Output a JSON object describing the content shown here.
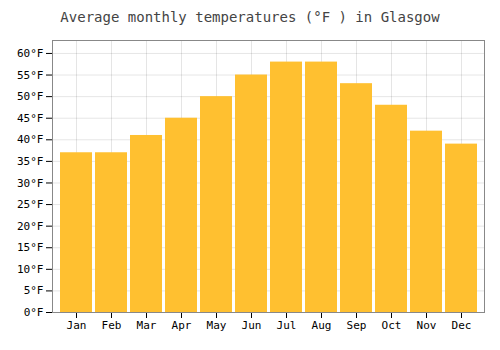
{
  "chart_data": {
    "type": "bar",
    "title": "Average monthly temperatures (°F ) in Glasgow",
    "categories": [
      "Jan",
      "Feb",
      "Mar",
      "Apr",
      "May",
      "Jun",
      "Jul",
      "Aug",
      "Sep",
      "Oct",
      "Nov",
      "Dec"
    ],
    "values": [
      37,
      37,
      41,
      45,
      50,
      55,
      58,
      58,
      53,
      48,
      42,
      39
    ],
    "color": "#FFC030",
    "ylim": [
      0,
      63
    ],
    "yticks": [
      {
        "value": 0,
        "label": "0°F"
      },
      {
        "value": 5,
        "label": "5°F"
      },
      {
        "value": 10,
        "label": "10°F"
      },
      {
        "value": 15,
        "label": "15°F"
      },
      {
        "value": 20,
        "label": "20°F"
      },
      {
        "value": 25,
        "label": "25°F"
      },
      {
        "value": 30,
        "label": "30°F"
      },
      {
        "value": 35,
        "label": "35°F"
      },
      {
        "value": 40,
        "label": "40°F"
      },
      {
        "value": 45,
        "label": "45°F"
      },
      {
        "value": 50,
        "label": "50°F"
      },
      {
        "value": 55,
        "label": "55°F"
      },
      {
        "value": 60,
        "label": "60°F"
      }
    ],
    "grid": true
  }
}
